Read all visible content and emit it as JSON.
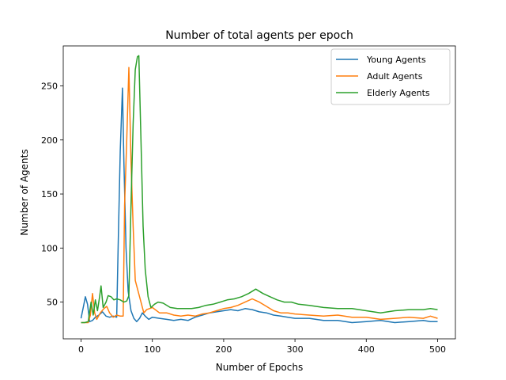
{
  "chart_data": {
    "type": "line",
    "title": "Number of total agents per epoch",
    "xlabel": "Number of Epochs",
    "ylabel": "Number of Agents",
    "xlim": [
      -25,
      525
    ],
    "ylim": [
      16,
      287
    ],
    "xticks": [
      0,
      100,
      200,
      300,
      400,
      500
    ],
    "yticks": [
      50,
      100,
      150,
      200,
      250
    ],
    "grid": false,
    "legend_position": "top-right",
    "series": [
      {
        "name": "Young Agents",
        "color": "#1f77b4",
        "points": [
          [
            0,
            35
          ],
          [
            3,
            45
          ],
          [
            6,
            55
          ],
          [
            9,
            48
          ],
          [
            12,
            32
          ],
          [
            16,
            33
          ],
          [
            20,
            36
          ],
          [
            25,
            38
          ],
          [
            30,
            41
          ],
          [
            35,
            37
          ],
          [
            40,
            36
          ],
          [
            45,
            37
          ],
          [
            50,
            36
          ],
          [
            52,
            100
          ],
          [
            55,
            190
          ],
          [
            58,
            248
          ],
          [
            60,
            180
          ],
          [
            63,
            100
          ],
          [
            66,
            60
          ],
          [
            70,
            42
          ],
          [
            74,
            35
          ],
          [
            78,
            32
          ],
          [
            82,
            35
          ],
          [
            86,
            40
          ],
          [
            90,
            37
          ],
          [
            95,
            34
          ],
          [
            100,
            36
          ],
          [
            110,
            35
          ],
          [
            120,
            34
          ],
          [
            130,
            33
          ],
          [
            140,
            34
          ],
          [
            150,
            33
          ],
          [
            160,
            36
          ],
          [
            170,
            38
          ],
          [
            180,
            40
          ],
          [
            190,
            41
          ],
          [
            200,
            42
          ],
          [
            210,
            43
          ],
          [
            220,
            42
          ],
          [
            230,
            44
          ],
          [
            240,
            43
          ],
          [
            250,
            41
          ],
          [
            260,
            40
          ],
          [
            270,
            38
          ],
          [
            280,
            37
          ],
          [
            290,
            36
          ],
          [
            300,
            35
          ],
          [
            320,
            35
          ],
          [
            340,
            33
          ],
          [
            360,
            33
          ],
          [
            380,
            31
          ],
          [
            400,
            32
          ],
          [
            420,
            33
          ],
          [
            440,
            31
          ],
          [
            460,
            32
          ],
          [
            480,
            33
          ],
          [
            490,
            32
          ],
          [
            500,
            32
          ]
        ]
      },
      {
        "name": "Adult Agents",
        "color": "#ff7f0e",
        "points": [
          [
            0,
            31
          ],
          [
            5,
            31
          ],
          [
            10,
            31
          ],
          [
            13,
            38
          ],
          [
            16,
            58
          ],
          [
            19,
            40
          ],
          [
            22,
            34
          ],
          [
            27,
            40
          ],
          [
            32,
            44
          ],
          [
            36,
            46
          ],
          [
            40,
            40
          ],
          [
            45,
            36
          ],
          [
            50,
            38
          ],
          [
            55,
            37
          ],
          [
            59,
            37
          ],
          [
            61,
            140
          ],
          [
            64,
            200
          ],
          [
            67,
            267
          ],
          [
            70,
            180
          ],
          [
            73,
            120
          ],
          [
            76,
            70
          ],
          [
            80,
            60
          ],
          [
            84,
            50
          ],
          [
            88,
            40
          ],
          [
            92,
            43
          ],
          [
            96,
            44
          ],
          [
            100,
            45
          ],
          [
            110,
            40
          ],
          [
            120,
            40
          ],
          [
            130,
            38
          ],
          [
            140,
            37
          ],
          [
            150,
            38
          ],
          [
            160,
            37
          ],
          [
            170,
            39
          ],
          [
            180,
            40
          ],
          [
            190,
            42
          ],
          [
            200,
            44
          ],
          [
            210,
            45
          ],
          [
            220,
            47
          ],
          [
            230,
            50
          ],
          [
            240,
            53
          ],
          [
            250,
            50
          ],
          [
            260,
            46
          ],
          [
            270,
            42
          ],
          [
            280,
            40
          ],
          [
            290,
            40
          ],
          [
            300,
            39
          ],
          [
            320,
            38
          ],
          [
            340,
            37
          ],
          [
            360,
            38
          ],
          [
            380,
            36
          ],
          [
            400,
            36
          ],
          [
            420,
            34
          ],
          [
            440,
            35
          ],
          [
            460,
            36
          ],
          [
            480,
            35
          ],
          [
            490,
            37
          ],
          [
            500,
            35
          ]
        ]
      },
      {
        "name": "Elderly Agents",
        "color": "#2ca02c",
        "points": [
          [
            0,
            31
          ],
          [
            5,
            31
          ],
          [
            10,
            32
          ],
          [
            14,
            50
          ],
          [
            17,
            38
          ],
          [
            20,
            52
          ],
          [
            23,
            42
          ],
          [
            26,
            55
          ],
          [
            28,
            65
          ],
          [
            31,
            45
          ],
          [
            35,
            50
          ],
          [
            38,
            56
          ],
          [
            42,
            55
          ],
          [
            46,
            52
          ],
          [
            50,
            53
          ],
          [
            55,
            52
          ],
          [
            60,
            50
          ],
          [
            64,
            51
          ],
          [
            67,
            56
          ],
          [
            70,
            140
          ],
          [
            73,
            215
          ],
          [
            76,
            265
          ],
          [
            79,
            277
          ],
          [
            81,
            278
          ],
          [
            84,
            200
          ],
          [
            87,
            120
          ],
          [
            90,
            80
          ],
          [
            94,
            55
          ],
          [
            98,
            45
          ],
          [
            103,
            48
          ],
          [
            108,
            50
          ],
          [
            115,
            49
          ],
          [
            125,
            45
          ],
          [
            135,
            44
          ],
          [
            145,
            44
          ],
          [
            155,
            44
          ],
          [
            165,
            45
          ],
          [
            175,
            47
          ],
          [
            185,
            48
          ],
          [
            195,
            50
          ],
          [
            205,
            52
          ],
          [
            215,
            53
          ],
          [
            225,
            55
          ],
          [
            235,
            58
          ],
          [
            245,
            62
          ],
          [
            255,
            58
          ],
          [
            265,
            55
          ],
          [
            275,
            52
          ],
          [
            285,
            50
          ],
          [
            295,
            50
          ],
          [
            305,
            48
          ],
          [
            320,
            47
          ],
          [
            340,
            45
          ],
          [
            360,
            44
          ],
          [
            380,
            44
          ],
          [
            400,
            42
          ],
          [
            420,
            40
          ],
          [
            440,
            42
          ],
          [
            460,
            43
          ],
          [
            480,
            43
          ],
          [
            490,
            44
          ],
          [
            500,
            43
          ]
        ]
      }
    ]
  }
}
